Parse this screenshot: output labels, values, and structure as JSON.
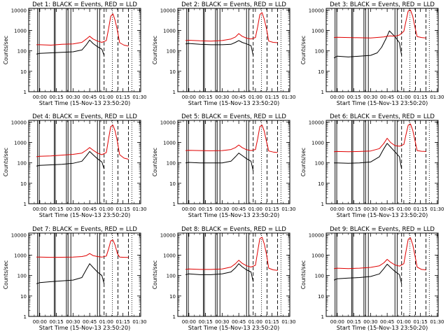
{
  "figure": {
    "x_ticks": [
      "00:00",
      "00:15",
      "00:30",
      "00:45",
      "01:00",
      "01:15",
      "01:30"
    ],
    "y_ticks": [
      "1",
      "10",
      "100",
      "1000",
      "10000"
    ],
    "ylabel": "Counts/sec",
    "xlabel": "Start Time (15-Nov-13 23:50:20)",
    "colors": {
      "events": "#000000",
      "lld": "#e00000"
    }
  },
  "chart_data": [
    {
      "type": "line",
      "title": "Det 1: BLACK = Events, RED = LLD",
      "xlabel": "Start Time (15-Nov-13 23:50:20)",
      "ylabel": "Counts/sec",
      "y_scale": "log",
      "ylim": [
        1,
        12000
      ],
      "xlim_minutes": [
        -10,
        91
      ],
      "vlines_solid": [
        -2,
        -0.5,
        13,
        14,
        24,
        25.5,
        28,
        52,
        54
      ],
      "vlines_dashed": [
        58,
        70.5,
        80
      ],
      "vlines_dotted": [
        65.5,
        83
      ],
      "series": [
        {
          "name": "Events",
          "color": "#000000",
          "t": [
            -3,
            0,
            10,
            20,
            30,
            38,
            42,
            45,
            48,
            52,
            56,
            58
          ],
          "v": [
            70,
            75,
            80,
            85,
            90,
            110,
            200,
            340,
            230,
            160,
            120,
            60
          ]
        },
        {
          "name": "LLD",
          "color": "#e00000",
          "t": [
            -3,
            0,
            10,
            20,
            30,
            38,
            42,
            45,
            48,
            52,
            56,
            60,
            62,
            64,
            66,
            68,
            70,
            72,
            76,
            80
          ],
          "v": [
            200,
            200,
            190,
            210,
            220,
            260,
            380,
            520,
            380,
            300,
            260,
            320,
            1200,
            5000,
            6500,
            3000,
            1000,
            250,
            190,
            170
          ]
        }
      ]
    },
    {
      "type": "line",
      "title": "Det 2: BLACK = Events, RED = LLD",
      "xlabel": "Start Time (15-Nov-13 23:50:20)",
      "ylabel": "Counts/sec",
      "y_scale": "log",
      "ylim": [
        1,
        12000
      ],
      "xlim_minutes": [
        -10,
        91
      ],
      "vlines_solid": [
        -2,
        -0.5,
        13,
        14,
        24,
        25.5,
        28,
        52,
        54
      ],
      "vlines_dashed": [
        58,
        70.5,
        80
      ],
      "vlines_dotted": [
        65.5,
        83
      ],
      "series": [
        {
          "name": "Events",
          "color": "#000000",
          "t": [
            -3,
            0,
            10,
            20,
            30,
            38,
            42,
            45,
            48,
            52,
            56,
            58
          ],
          "v": [
            220,
            230,
            210,
            200,
            200,
            210,
            260,
            320,
            260,
            220,
            180,
            60
          ]
        },
        {
          "name": "LLD",
          "color": "#e00000",
          "t": [
            -3,
            0,
            10,
            20,
            30,
            38,
            42,
            45,
            48,
            52,
            56,
            60,
            62,
            64,
            66,
            68,
            70,
            72,
            76,
            80
          ],
          "v": [
            320,
            330,
            310,
            300,
            320,
            380,
            480,
            700,
            520,
            420,
            380,
            450,
            1500,
            6000,
            7500,
            3500,
            1200,
            300,
            260,
            250
          ]
        }
      ]
    },
    {
      "type": "line",
      "title": "Det 3: BLACK = Events, RED = LLD",
      "xlabel": "Start Time (15-Nov-13 23:50:20)",
      "ylabel": "Counts/sec",
      "y_scale": "log",
      "ylim": [
        1,
        12000
      ],
      "xlim_minutes": [
        -10,
        91
      ],
      "vlines_solid": [
        -2,
        -0.5,
        13,
        14,
        24,
        25.5,
        28,
        52,
        54
      ],
      "vlines_dashed": [
        58,
        70.5,
        80
      ],
      "vlines_dotted": [
        65.5,
        83
      ],
      "series": [
        {
          "name": "Events",
          "color": "#000000",
          "t": [
            -3,
            0,
            10,
            20,
            30,
            36,
            40,
            44,
            47,
            52,
            56,
            58
          ],
          "v": [
            45,
            55,
            50,
            55,
            60,
            80,
            150,
            400,
            950,
            500,
            250,
            60
          ]
        },
        {
          "name": "LLD",
          "color": "#e00000",
          "t": [
            -3,
            0,
            10,
            20,
            30,
            38,
            42,
            45,
            48,
            52,
            56,
            60,
            62,
            64,
            66,
            68,
            70,
            72,
            76,
            80
          ],
          "v": [
            450,
            460,
            450,
            440,
            430,
            460,
            480,
            520,
            540,
            520,
            600,
            900,
            3000,
            9000,
            10000,
            5000,
            1500,
            500,
            450,
            430
          ]
        }
      ]
    },
    {
      "type": "line",
      "title": "Det 4: BLACK = Events, RED = LLD",
      "xlabel": "Start Time (15-Nov-13 23:50:20)",
      "ylabel": "Counts/sec",
      "y_scale": "log",
      "ylim": [
        1,
        12000
      ],
      "xlim_minutes": [
        -10,
        91
      ],
      "vlines_solid": [
        -2,
        -0.5,
        13,
        14,
        24,
        25.5,
        28,
        52,
        54
      ],
      "vlines_dashed": [
        58,
        70.5,
        80
      ],
      "vlines_dotted": [
        65.5,
        83
      ],
      "series": [
        {
          "name": "Events",
          "color": "#000000",
          "t": [
            -3,
            0,
            10,
            20,
            30,
            38,
            42,
            45,
            48,
            52,
            56,
            58
          ],
          "v": [
            70,
            75,
            80,
            85,
            95,
            120,
            220,
            360,
            250,
            160,
            110,
            50
          ]
        },
        {
          "name": "LLD",
          "color": "#e00000",
          "t": [
            -3,
            0,
            10,
            20,
            30,
            38,
            42,
            45,
            48,
            52,
            56,
            60,
            62,
            64,
            66,
            68,
            70,
            72,
            76,
            80
          ],
          "v": [
            200,
            210,
            220,
            240,
            260,
            300,
            420,
            560,
            420,
            300,
            250,
            320,
            1500,
            6000,
            7000,
            3500,
            1100,
            250,
            170,
            150
          ]
        }
      ]
    },
    {
      "type": "line",
      "title": "Det 5: BLACK = Events, RED = LLD",
      "xlabel": "Start Time (15-Nov-13 23:50:20)",
      "ylabel": "Counts/sec",
      "y_scale": "log",
      "ylim": [
        1,
        12000
      ],
      "xlim_minutes": [
        -10,
        91
      ],
      "vlines_solid": [
        -2,
        -0.5,
        13,
        14,
        24,
        25.5,
        28,
        52,
        54
      ],
      "vlines_dashed": [
        58,
        70.5,
        80
      ],
      "vlines_dotted": [
        65.5,
        83
      ],
      "series": [
        {
          "name": "Events",
          "color": "#000000",
          "t": [
            -3,
            0,
            10,
            20,
            30,
            38,
            42,
            45,
            48,
            52,
            56,
            58
          ],
          "v": [
            100,
            105,
            100,
            100,
            100,
            120,
            200,
            300,
            230,
            160,
            120,
            40
          ]
        },
        {
          "name": "LLD",
          "color": "#e00000",
          "t": [
            -3,
            0,
            10,
            20,
            30,
            38,
            42,
            45,
            48,
            52,
            56,
            60,
            62,
            64,
            66,
            68,
            70,
            72,
            76,
            80
          ],
          "v": [
            400,
            410,
            400,
            390,
            400,
            450,
            560,
            750,
            560,
            440,
            400,
            450,
            1500,
            6000,
            7000,
            3500,
            1100,
            380,
            340,
            320
          ]
        }
      ]
    },
    {
      "type": "line",
      "title": "Det 6: BLACK = Events, RED = LLD",
      "xlabel": "Start Time (15-Nov-13 23:50:20)",
      "ylabel": "Counts/sec",
      "y_scale": "log",
      "ylim": [
        1,
        12000
      ],
      "xlim_minutes": [
        -10,
        91
      ],
      "vlines_solid": [
        -2,
        -0.5,
        13,
        14,
        24,
        25.5,
        28,
        52,
        54
      ],
      "vlines_dashed": [
        58,
        70.5,
        80
      ],
      "vlines_dotted": [
        65.5,
        83
      ],
      "series": [
        {
          "name": "Events",
          "color": "#000000",
          "t": [
            -3,
            0,
            10,
            20,
            30,
            38,
            42,
            45,
            48,
            52,
            56,
            58
          ],
          "v": [
            100,
            100,
            95,
            100,
            110,
            200,
            500,
            900,
            600,
            350,
            200,
            50
          ]
        },
        {
          "name": "LLD",
          "color": "#e00000",
          "t": [
            -3,
            0,
            10,
            20,
            30,
            38,
            42,
            45,
            48,
            52,
            56,
            60,
            62,
            64,
            66,
            68,
            70,
            72,
            76,
            80
          ],
          "v": [
            350,
            360,
            350,
            360,
            380,
            500,
            900,
            1600,
            1000,
            700,
            650,
            800,
            2500,
            7000,
            8000,
            4000,
            1300,
            400,
            370,
            360
          ]
        }
      ]
    },
    {
      "type": "line",
      "title": "Det 7: BLACK = Events, RED = LLD",
      "xlabel": "Start Time (15-Nov-13 23:50:20)",
      "ylabel": "Counts/sec",
      "y_scale": "log",
      "ylim": [
        1,
        12000
      ],
      "xlim_minutes": [
        -10,
        91
      ],
      "vlines_solid": [
        -2,
        -0.5,
        13,
        14,
        24,
        25.5,
        28,
        52,
        54
      ],
      "vlines_dashed": [
        58,
        70.5,
        80
      ],
      "vlines_dotted": [
        65.5,
        83
      ],
      "series": [
        {
          "name": "Events",
          "color": "#000000",
          "t": [
            -3,
            0,
            10,
            20,
            30,
            38,
            42,
            45,
            48,
            52,
            56,
            58
          ],
          "v": [
            40,
            45,
            50,
            55,
            60,
            80,
            200,
            380,
            250,
            150,
            100,
            40
          ]
        },
        {
          "name": "LLD",
          "color": "#e00000",
          "t": [
            -3,
            0,
            10,
            20,
            30,
            38,
            42,
            45,
            48,
            52,
            56,
            60,
            62,
            64,
            66,
            68,
            70,
            72,
            76,
            80
          ],
          "v": [
            800,
            800,
            780,
            790,
            800,
            850,
            950,
            1200,
            950,
            850,
            800,
            900,
            2000,
            5000,
            5500,
            3000,
            1200,
            800,
            780,
            770
          ]
        }
      ]
    },
    {
      "type": "line",
      "title": "Det 8: BLACK = Events, RED = LLD",
      "xlabel": "Start Time (15-Nov-13 23:50:20)",
      "ylabel": "Counts/sec",
      "y_scale": "log",
      "ylim": [
        1,
        12000
      ],
      "xlim_minutes": [
        -10,
        91
      ],
      "vlines_solid": [
        -2,
        -0.5,
        13,
        14,
        24,
        25.5,
        28,
        52,
        54
      ],
      "vlines_dashed": [
        58,
        70.5,
        80
      ],
      "vlines_dotted": [
        65.5,
        83
      ],
      "series": [
        {
          "name": "Events",
          "color": "#000000",
          "t": [
            -3,
            0,
            10,
            20,
            30,
            38,
            42,
            45,
            48,
            52,
            56,
            58
          ],
          "v": [
            110,
            120,
            110,
            110,
            120,
            150,
            240,
            380,
            270,
            190,
            150,
            50
          ]
        },
        {
          "name": "LLD",
          "color": "#e00000",
          "t": [
            -3,
            0,
            10,
            20,
            30,
            38,
            42,
            45,
            48,
            52,
            56,
            60,
            62,
            64,
            66,
            68,
            70,
            72,
            76,
            80
          ],
          "v": [
            200,
            210,
            200,
            200,
            210,
            260,
            380,
            560,
            400,
            300,
            260,
            320,
            1500,
            6500,
            7500,
            3500,
            1100,
            230,
            190,
            180
          ]
        }
      ]
    },
    {
      "type": "line",
      "title": "Det 9: BLACK = Events, RED = LLD",
      "xlabel": "Start Time (15-Nov-13 23:50:20)",
      "ylabel": "Counts/sec",
      "y_scale": "log",
      "ylim": [
        1,
        12000
      ],
      "xlim_minutes": [
        -10,
        91
      ],
      "vlines_solid": [
        -2,
        -0.5,
        13,
        14,
        24,
        25.5,
        28,
        52,
        54
      ],
      "vlines_dashed": [
        58,
        70.5,
        80
      ],
      "vlines_dotted": [
        65.5,
        83
      ],
      "series": [
        {
          "name": "Events",
          "color": "#000000",
          "t": [
            -3,
            0,
            10,
            20,
            30,
            38,
            42,
            45,
            48,
            52,
            56,
            58
          ],
          "v": [
            60,
            70,
            75,
            80,
            90,
            120,
            220,
            360,
            250,
            160,
            110,
            40
          ]
        },
        {
          "name": "LLD",
          "color": "#e00000",
          "t": [
            -3,
            0,
            10,
            20,
            30,
            38,
            42,
            45,
            48,
            52,
            56,
            60,
            62,
            64,
            66,
            68,
            70,
            72,
            76,
            80
          ],
          "v": [
            220,
            230,
            220,
            230,
            250,
            300,
            420,
            620,
            450,
            330,
            290,
            380,
            1600,
            6000,
            7000,
            3300,
            1000,
            260,
            200,
            190
          ]
        }
      ]
    }
  ]
}
